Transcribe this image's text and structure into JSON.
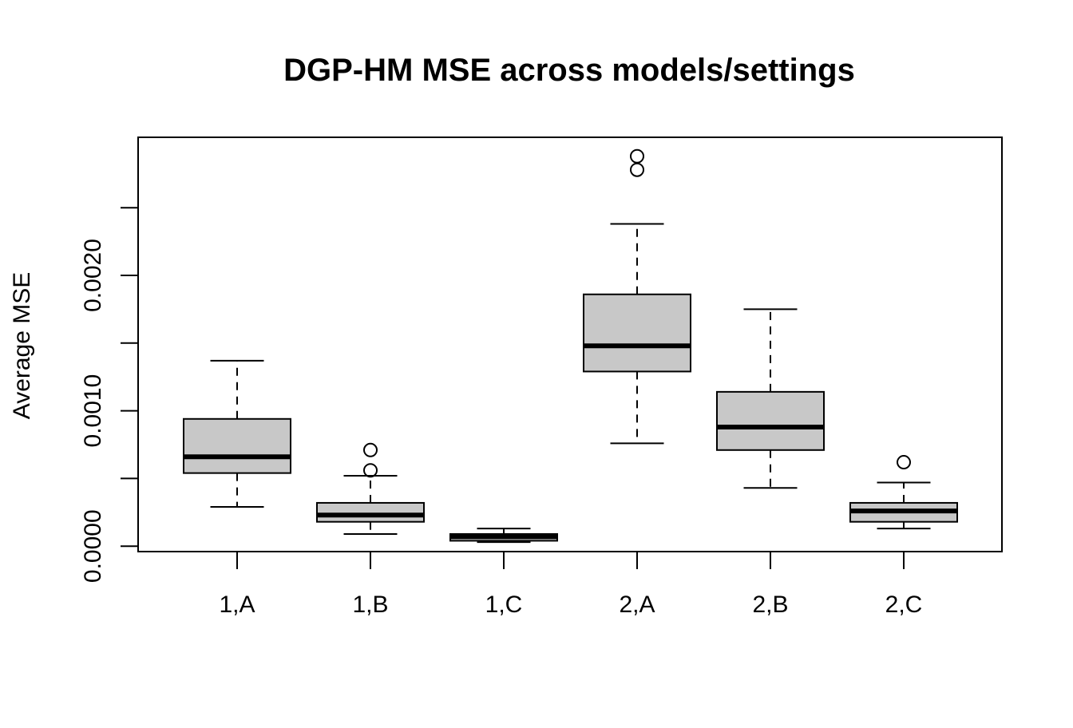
{
  "chart_data": {
    "type": "boxplot",
    "title": "DGP-HM MSE across models/settings",
    "xlabel": "",
    "ylabel": "Average MSE",
    "categories": [
      "1,A",
      "1,B",
      "1,C",
      "2,A",
      "2,B",
      "2,C"
    ],
    "y_ticks": [
      {
        "value": 0.0,
        "label": "0.0000"
      },
      {
        "value": 0.0005,
        "label": ""
      },
      {
        "value": 0.001,
        "label": "0.0010"
      },
      {
        "value": 0.0015,
        "label": ""
      },
      {
        "value": 0.002,
        "label": "0.0020"
      },
      {
        "value": 0.0025,
        "label": ""
      }
    ],
    "ylim": [
      -4e-05,
      0.00302
    ],
    "boxes": [
      {
        "category": "1,A",
        "whisker_low": 0.00029,
        "q1": 0.00054,
        "median": 0.00066,
        "q3": 0.00094,
        "whisker_high": 0.00137,
        "outliers": []
      },
      {
        "category": "1,B",
        "whisker_low": 9e-05,
        "q1": 0.00018,
        "median": 0.00023,
        "q3": 0.00032,
        "whisker_high": 0.00052,
        "outliers": [
          0.00056,
          0.00071
        ]
      },
      {
        "category": "1,C",
        "whisker_low": 3e-05,
        "q1": 4e-05,
        "median": 7e-05,
        "q3": 9e-05,
        "whisker_high": 0.00013,
        "outliers": []
      },
      {
        "category": "2,A",
        "whisker_low": 0.00076,
        "q1": 0.00129,
        "median": 0.00148,
        "q3": 0.00186,
        "whisker_high": 0.00238,
        "outliers": [
          0.00278,
          0.00288
        ]
      },
      {
        "category": "2,B",
        "whisker_low": 0.00043,
        "q1": 0.00071,
        "median": 0.00088,
        "q3": 0.00114,
        "whisker_high": 0.00175,
        "outliers": []
      },
      {
        "category": "2,C",
        "whisker_low": 0.00013,
        "q1": 0.00018,
        "median": 0.00026,
        "q3": 0.00032,
        "whisker_high": 0.00047,
        "outliers": [
          0.00062
        ]
      }
    ],
    "box_fill": "#c8c8c8",
    "line_color": "#000000",
    "grid": false,
    "legend": "none"
  }
}
